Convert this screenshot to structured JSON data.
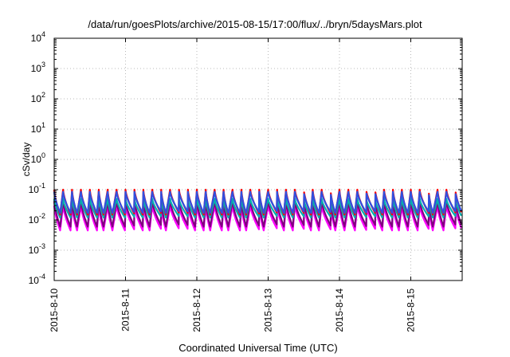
{
  "chart_data": {
    "type": "line",
    "title": "/data/run/goesPlots/archive/2015-08-15/17:00/flux/../bryn/5daysMars.plot",
    "xlabel": "Coordinated Universal Time (UTC)",
    "ylabel": "cSv/day",
    "yscale": "log",
    "ylim": [
      0.0001,
      10000
    ],
    "xlim": [
      "2015-08-10T00:00",
      "2015-08-15T17:00"
    ],
    "grid": true,
    "legend": "none",
    "x_tick_labels": [
      "2015-8-10",
      "2015-8-11",
      "2015-8-12",
      "2015-8-13",
      "2015-8-14",
      "2015-8-15"
    ],
    "y_ticks": [
      {
        "base": "10",
        "exp": "-4"
      },
      {
        "base": "10",
        "exp": "-3"
      },
      {
        "base": "10",
        "exp": "-2"
      },
      {
        "base": "10",
        "exp": "-1"
      },
      {
        "base": "10",
        "exp": "0"
      },
      {
        "base": "10",
        "exp": "1"
      },
      {
        "base": "10",
        "exp": "2"
      },
      {
        "base": "10",
        "exp": "3"
      },
      {
        "base": "10",
        "exp": "4"
      }
    ],
    "series_shape": {
      "period_hours": 3,
      "peak_hours": [
        2,
        2.5,
        1.7,
        2.3,
        2.4,
        1.6,
        1.6,
        2.8,
        3.1,
        2.8,
        2.1,
        3.2,
        1.6,
        3.3,
        3.2,
        2.4,
        2.3,
        1.5,
        2.4,
        1.6,
        2.5,
        1.6,
        3.1,
        1.5,
        3.3,
        2.3,
        2.3,
        3.3,
        2.4,
        2.1,
        3.2,
        1.6,
        1.7,
        2.2,
        3.1,
        3.3,
        2.4,
        2.7,
        2.0,
        2.0,
        2.3,
        3.3,
        1.4,
        2.0,
        3.4,
        2.3
      ]
    },
    "series": [
      {
        "color": "#ff00ff",
        "peak": 0.03,
        "trough": 0.0045
      },
      {
        "color": "#800080",
        "peak": 0.042,
        "trough": 0.006
      },
      {
        "color": "#00b0b0",
        "peak": 0.05,
        "trough": 0.012
      },
      {
        "color": "#ff0000",
        "peak": 0.1,
        "trough": 0.015
      },
      {
        "color": "#3050e0",
        "peak": 0.085,
        "trough": 0.017
      }
    ]
  }
}
